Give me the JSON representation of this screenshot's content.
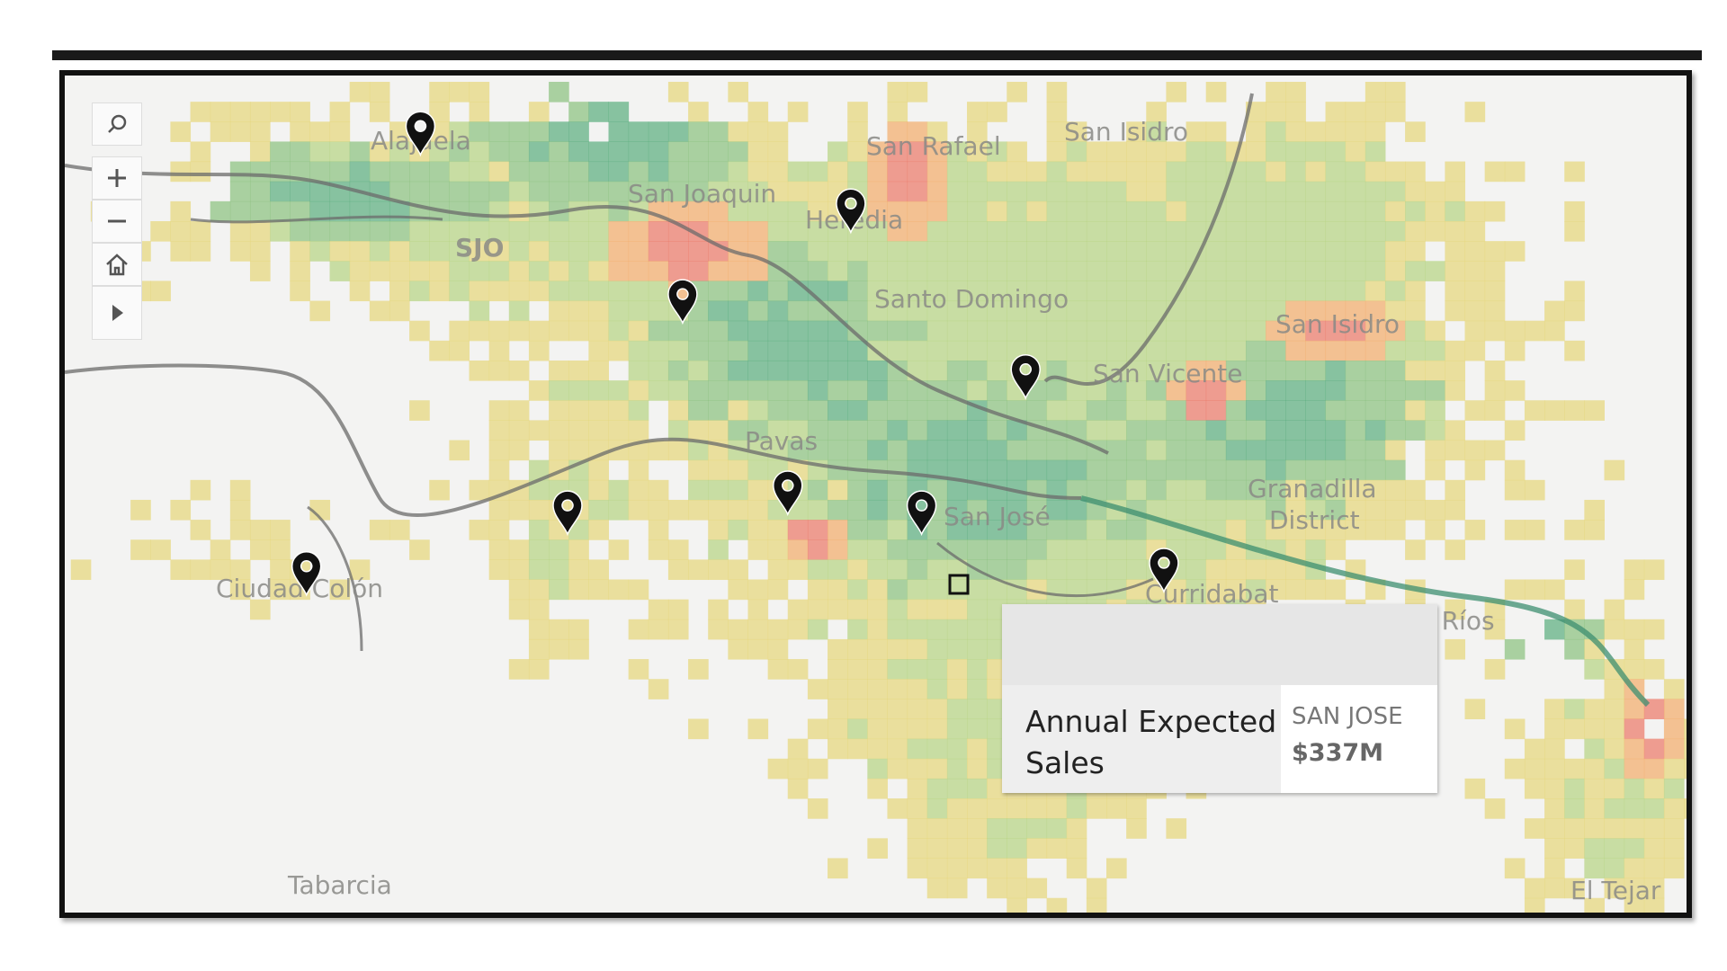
{
  "map": {
    "places": [
      "Alajuela",
      "San Rafael",
      "San Isidro",
      "San Joaquin",
      "Heredia",
      "SJO",
      "Santo Domingo",
      "San Isidro",
      "San Vicente",
      "Pavas",
      "San José",
      "Granadilla",
      "District",
      "Ciudad Colón",
      "Curridabat",
      "Tres Ríos",
      "Tabarcia",
      "El Tejar"
    ]
  },
  "tooltip": {
    "label": "Annual Expected Sales",
    "location": "SAN JOSE",
    "value": "$337M"
  }
}
